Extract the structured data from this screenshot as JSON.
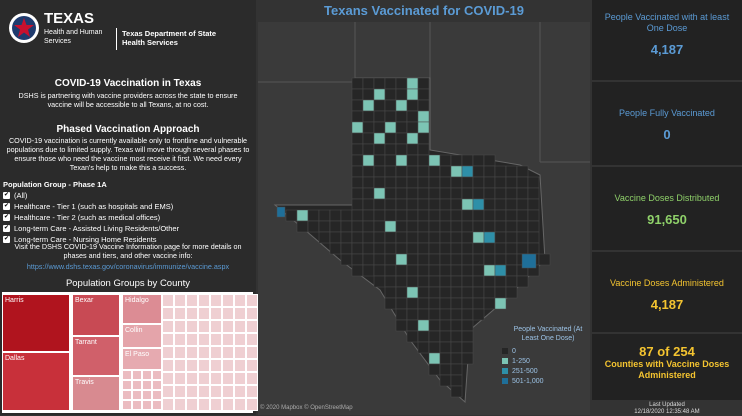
{
  "header": {
    "logo_title": "TEXAS",
    "logo_line1": "Health and Human",
    "logo_line2": "Services",
    "dept_line1": "Texas Department of State",
    "dept_line2": "Health Services"
  },
  "intro": {
    "title": "COVID-19 Vaccination in Texas",
    "text": "DSHS is partnering with vaccine providers across the state to ensure vaccine will be accessible to all Texans, at no cost."
  },
  "phased": {
    "title": "Phased Vaccination Approach",
    "text": "COVID-19 vaccination is currently available only to frontline and vulnerable populations due to limited supply. Texas will move through several phases to ensure those who need the vaccine most receive it first. We need every Texan's help to make this a success."
  },
  "filter": {
    "title": "Population Group - Phase 1A",
    "options": [
      "(All)",
      "Healthcare - Tier 1 (such as hospitals and EMS)",
      "Healthcare - Tier 2 (such as medical offices)",
      "Long-term Care - Assisted Living Residents/Other",
      "Long-term Care - Nursing Home Residents"
    ]
  },
  "visit": {
    "text": "Visit the DSHS COVID-19 Vaccine Information page for more details on phases and tiers, and other vaccine info:",
    "link": "https://www.dshs.texas.gov/coronavirus/immunize/vaccine.aspx"
  },
  "treemap": {
    "title": "Population Groups by County",
    "labels": [
      "Harris",
      "Dallas",
      "Bexar",
      "Tarrant",
      "Travis",
      "Hidalgo",
      "Collin",
      "El Paso"
    ]
  },
  "map": {
    "title": "Texans Vaccinated for COVID-19",
    "legend_title": "People Vaccinated (At Least One Dose)",
    "legend": [
      "0",
      "1-250",
      "251-500",
      "501-1,000"
    ],
    "attribution": "© 2020 Mapbox © OpenStreetMap"
  },
  "kpis": [
    {
      "label": "People Vaccinated with at least One Dose",
      "value": "4,187"
    },
    {
      "label": "People Fully Vaccinated",
      "value": "0"
    },
    {
      "label": "Vaccine Doses Distributed",
      "value": "91,650"
    },
    {
      "label": "Vaccine Doses Administered",
      "value": "4,187"
    },
    {
      "label": "Counties with Vaccine Doses Administered",
      "value": "87 of 254"
    }
  ],
  "updated": {
    "label": "Last Updated",
    "value": "12/18/2020 12:35:48 AM"
  }
}
